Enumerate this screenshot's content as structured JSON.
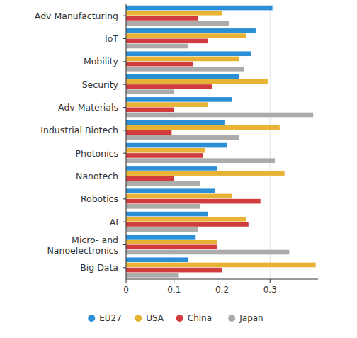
{
  "chart_data": {
    "type": "bar",
    "orientation": "horizontal",
    "grid": true,
    "legend": "bottom",
    "categories": [
      "Adv Manufacturing",
      "IoT",
      "Mobility",
      "Security",
      "Adv Materials",
      "Industrial Biotech",
      "Photonics",
      "Nanotech",
      "Robotics",
      "AI",
      "Micro- and Nanoelectronics",
      "Big Data"
    ],
    "series": [
      {
        "name": "EU27",
        "color": "#2b8fd6",
        "values": [
          0.305,
          0.27,
          0.26,
          0.235,
          0.22,
          0.205,
          0.21,
          0.19,
          0.185,
          0.17,
          0.145,
          0.13
        ]
      },
      {
        "name": "USA",
        "color": "#e8b234",
        "values": [
          0.2,
          0.25,
          0.235,
          0.295,
          0.17,
          0.32,
          0.165,
          0.33,
          0.22,
          0.25,
          0.19,
          0.395
        ]
      },
      {
        "name": "China",
        "color": "#d13c3f",
        "values": [
          0.15,
          0.17,
          0.14,
          0.18,
          0.1,
          0.095,
          0.16,
          0.1,
          0.28,
          0.255,
          0.19,
          0.2
        ]
      },
      {
        "name": "Japan",
        "color": "#ababab",
        "values": [
          0.215,
          0.13,
          0.245,
          0.1,
          0.39,
          0.235,
          0.31,
          0.155,
          0.155,
          0.15,
          0.34,
          0.11
        ]
      }
    ],
    "xlim": [
      0,
      0.4
    ],
    "xticks": [
      0,
      0.1,
      0.2,
      0.3
    ]
  }
}
